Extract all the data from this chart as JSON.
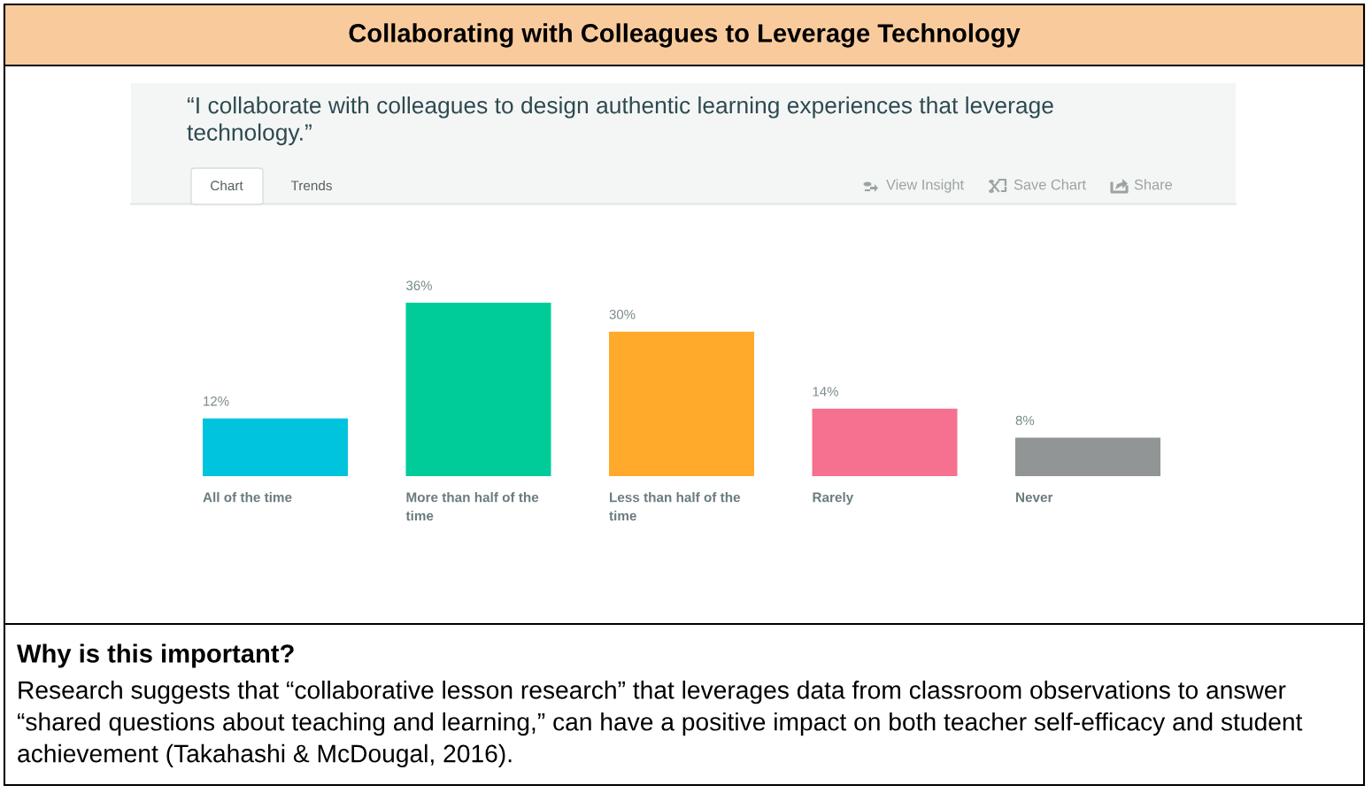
{
  "chart_data": {
    "type": "bar",
    "title": "Collaborating with Colleagues to Leverage Technology",
    "subtitle": "“I collaborate with colleagues to design authentic learning experiences that leverage technology.”",
    "categories": [
      "All of the time",
      "More than half of the time",
      "Less than half of the time",
      "Rarely",
      "Never"
    ],
    "values": [
      12,
      36,
      30,
      14,
      8
    ],
    "colors": [
      "#00c3de",
      "#00cc99",
      "#ffaa2b",
      "#f5718f",
      "#929595"
    ],
    "value_labels": [
      "12%",
      "36%",
      "30%",
      "14%",
      "8%"
    ],
    "tick_labels": "x",
    "annotations": [
      "Chart",
      "Trends",
      "View Insight",
      "Save Chart",
      "Share",
      "Why is this important?",
      "Research suggests that “collaborative lesson research” that leverages data from classroom observations to answer “shared questions about teaching and learning,” can have a positive impact on both teacher self-efficacy and student achievement (Takahashi & McDougal, 2016)."
    ]
  }
}
